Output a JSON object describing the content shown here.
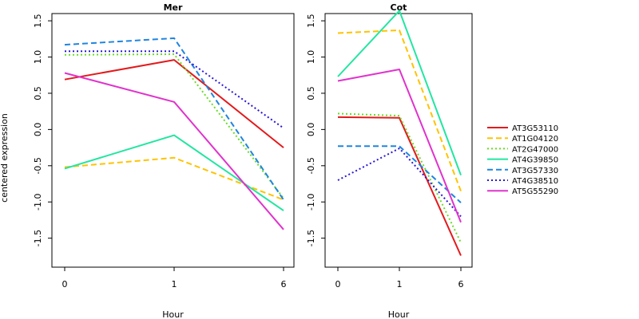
{
  "ylabel": "centered expression",
  "xlabel": "Hour",
  "legend_placement": "right",
  "chart_data": [
    {
      "type": "line",
      "title": "Mer",
      "xlabel": "Hour",
      "ylabel": "centered expression",
      "categories": [
        "0",
        "1",
        "6"
      ],
      "ylim": [
        -1.9,
        1.6
      ],
      "yticks": [
        -1.5,
        -1.0,
        -0.5,
        0.0,
        0.5,
        1.0,
        1.5
      ],
      "ytick_labels": [
        "-1.5",
        "-1.0",
        "-0.5",
        "0.0",
        "0.5",
        "1.0",
        "1.5"
      ],
      "series": [
        {
          "name": "AT3G53110",
          "values": [
            0.69,
            0.96,
            -0.25
          ]
        },
        {
          "name": "AT1G04120",
          "values": [
            -0.52,
            -0.39,
            -0.97
          ]
        },
        {
          "name": "AT2G47000",
          "values": [
            1.03,
            1.04,
            -0.95
          ]
        },
        {
          "name": "AT4G39850",
          "values": [
            -0.54,
            -0.08,
            -1.12
          ]
        },
        {
          "name": "AT3G57330",
          "values": [
            1.17,
            1.26,
            -0.97
          ]
        },
        {
          "name": "AT4G38510",
          "values": [
            1.08,
            1.08,
            0.02
          ]
        },
        {
          "name": "AT5G55290",
          "values": [
            0.78,
            0.38,
            -1.38
          ]
        }
      ]
    },
    {
      "type": "line",
      "title": "Cot",
      "xlabel": "Hour",
      "ylabel": "",
      "categories": [
        "0",
        "1",
        "6"
      ],
      "ylim": [
        -1.9,
        1.6
      ],
      "yticks": [
        -1.5,
        -1.0,
        -0.5,
        0.0,
        0.5,
        1.0,
        1.5
      ],
      "ytick_labels": [
        "-1.5",
        "-1.0",
        "-0.5",
        "0.0",
        "0.5",
        "1.0",
        "1.5"
      ],
      "series": [
        {
          "name": "AT3G53110",
          "values": [
            0.17,
            0.16,
            -1.74
          ]
        },
        {
          "name": "AT1G04120",
          "values": [
            1.33,
            1.37,
            -0.85
          ]
        },
        {
          "name": "AT2G47000",
          "values": [
            0.22,
            0.19,
            -1.56
          ]
        },
        {
          "name": "AT4G39850",
          "values": [
            0.73,
            1.64,
            -0.63
          ]
        },
        {
          "name": "AT3G57330",
          "values": [
            -0.23,
            -0.23,
            -1.01
          ]
        },
        {
          "name": "AT4G38510",
          "values": [
            -0.7,
            -0.26,
            -1.2
          ]
        },
        {
          "name": "AT5G55290",
          "values": [
            0.67,
            0.83,
            -1.28
          ]
        }
      ]
    }
  ],
  "legend": {
    "entries": [
      {
        "name": "AT3G53110",
        "color": "#e31a1c",
        "dash": "solid"
      },
      {
        "name": "AT1G04120",
        "color": "#ffc300",
        "dash": "dashed"
      },
      {
        "name": "AT2G47000",
        "color": "#66dd22",
        "dash": "dotted"
      },
      {
        "name": "AT4G39850",
        "color": "#22e6a0",
        "dash": "solid"
      },
      {
        "name": "AT3G57330",
        "color": "#1f85e0",
        "dash": "dashed"
      },
      {
        "name": "AT4G38510",
        "color": "#2a18d8",
        "dash": "dotted"
      },
      {
        "name": "AT5G55290",
        "color": "#e033cc",
        "dash": "solid"
      }
    ]
  }
}
